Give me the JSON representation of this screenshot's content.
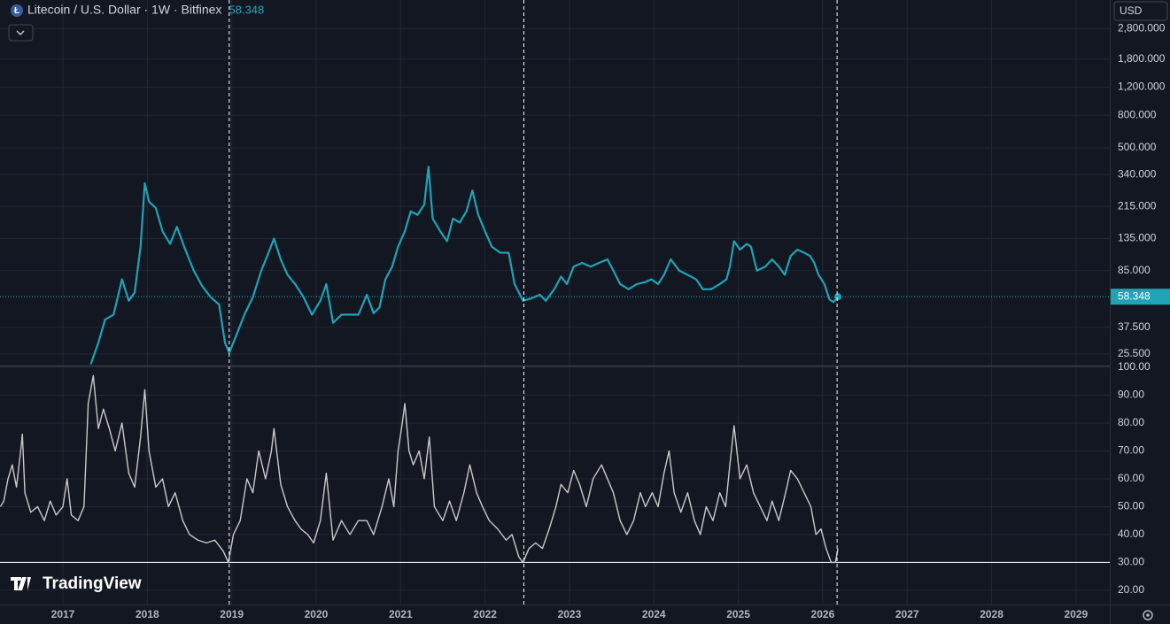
{
  "chart_data": {
    "type": "line",
    "title": "Litecoin / U.S. Dollar · 1W · Bitfinex",
    "last_price": 58.348,
    "currency": "USD",
    "watermark": "TradingView",
    "grid": true,
    "xlim": [
      2016.255,
      2029.4
    ],
    "xticks": [
      2017,
      2018,
      2019,
      2020,
      2021,
      2022,
      2023,
      2024,
      2025,
      2026,
      2027,
      2028,
      2029
    ],
    "markers": [
      2018.97,
      2022.46,
      2026.17
    ],
    "panes": [
      {
        "log": true,
        "ylim": [
          21.6,
          4220
        ],
        "yticks": [
          {
            "value": 25.5,
            "label": "25.500"
          },
          {
            "value": 37.5,
            "label": "37.500"
          },
          {
            "value": 85,
            "label": "85.000"
          },
          {
            "value": 135,
            "label": "135.000"
          },
          {
            "value": 215,
            "label": "215.000"
          },
          {
            "value": 340,
            "label": "340.000"
          },
          {
            "value": 500,
            "label": "500.000"
          },
          {
            "value": 800,
            "label": "800.000"
          },
          {
            "value": 1200,
            "label": "1,200.000"
          },
          {
            "value": 1800,
            "label": "1,800.000"
          },
          {
            "value": 2800,
            "label": "2,800.000"
          }
        ],
        "series": [
          {
            "color": "#1fa3b5",
            "x": [
              2017.33,
              2017.42,
              2017.5,
              2017.6,
              2017.7,
              2017.78,
              2017.85,
              2017.92,
              2017.97,
              2018.02,
              2018.1,
              2018.18,
              2018.27,
              2018.35,
              2018.45,
              2018.55,
              2018.65,
              2018.75,
              2018.85,
              2018.92,
              2018.97,
              2019.05,
              2019.15,
              2019.25,
              2019.35,
              2019.45,
              2019.5,
              2019.58,
              2019.66,
              2019.75,
              2019.85,
              2019.95,
              2020.05,
              2020.12,
              2020.2,
              2020.3,
              2020.4,
              2020.5,
              2020.6,
              2020.68,
              2020.75,
              2020.82,
              2020.9,
              2020.97,
              2021.05,
              2021.12,
              2021.2,
              2021.28,
              2021.33,
              2021.38,
              2021.47,
              2021.55,
              2021.62,
              2021.7,
              2021.78,
              2021.85,
              2021.92,
              2022.0,
              2022.08,
              2022.18,
              2022.28,
              2022.35,
              2022.45,
              2022.55,
              2022.65,
              2022.72,
              2022.82,
              2022.9,
              2022.97,
              2023.05,
              2023.15,
              2023.25,
              2023.35,
              2023.45,
              2023.52,
              2023.6,
              2023.7,
              2023.8,
              2023.9,
              2023.97,
              2024.05,
              2024.12,
              2024.2,
              2024.3,
              2024.4,
              2024.5,
              2024.58,
              2024.68,
              2024.78,
              2024.86,
              2024.9,
              2024.95,
              2025.02,
              2025.1,
              2025.15,
              2025.22,
              2025.32,
              2025.4,
              2025.48,
              2025.55,
              2025.62,
              2025.7,
              2025.78,
              2025.85,
              2025.9,
              2025.95,
              2026.02,
              2026.08,
              2026.13,
              2026.18
            ],
            "values": [
              22,
              30,
              42,
              45,
              75,
              55,
              62,
              120,
              300,
              230,
              210,
              150,
              125,
              160,
              115,
              85,
              68,
              58,
              52,
              30,
              26,
              33,
              45,
              58,
              85,
              115,
              135,
              100,
              80,
              70,
              58,
              45,
              55,
              70,
              40,
              45,
              45,
              45,
              60,
              46,
              50,
              75,
              90,
              120,
              150,
              200,
              190,
              220,
              380,
              180,
              150,
              130,
              180,
              170,
              200,
              270,
              190,
              150,
              120,
              110,
              110,
              70,
              55,
              57,
              60,
              55,
              65,
              78,
              70,
              90,
              95,
              90,
              95,
              100,
              85,
              70,
              65,
              70,
              72,
              75,
              70,
              80,
              100,
              85,
              80,
              75,
              65,
              65,
              70,
              75,
              90,
              130,
              115,
              125,
              120,
              85,
              90,
              100,
              90,
              80,
              105,
              115,
              110,
              105,
              95,
              80,
              70,
              56,
              54,
              58.348
            ]
          }
        ]
      },
      {
        "log": false,
        "ylim": [
          14.9,
          100.3
        ],
        "hline": 30,
        "yticks": [
          {
            "value": 20,
            "label": "20.00"
          },
          {
            "value": 30,
            "label": "30.00"
          },
          {
            "value": 40,
            "label": "40.00"
          },
          {
            "value": 50,
            "label": "50.00"
          },
          {
            "value": 60,
            "label": "60.00"
          },
          {
            "value": 70,
            "label": "70.00"
          },
          {
            "value": 80,
            "label": "80.00"
          },
          {
            "value": 90,
            "label": "90.00"
          },
          {
            "value": 100,
            "label": "100.00"
          }
        ],
        "series": [
          {
            "color": "#c9c9c9",
            "x": [
              2016.26,
              2016.3,
              2016.35,
              2016.4,
              2016.45,
              2016.5,
              2016.52,
              2016.55,
              2016.62,
              2016.7,
              2016.78,
              2016.85,
              2016.92,
              2017.0,
              2017.05,
              2017.1,
              2017.18,
              2017.25,
              2017.3,
              2017.36,
              2017.42,
              2017.48,
              2017.55,
              2017.62,
              2017.7,
              2017.78,
              2017.85,
              2017.92,
              2017.97,
              2018.02,
              2018.1,
              2018.18,
              2018.25,
              2018.33,
              2018.42,
              2018.5,
              2018.6,
              2018.7,
              2018.8,
              2018.9,
              2018.96,
              2019.02,
              2019.1,
              2019.18,
              2019.25,
              2019.32,
              2019.4,
              2019.47,
              2019.5,
              2019.58,
              2019.66,
              2019.75,
              2019.82,
              2019.9,
              2019.97,
              2020.05,
              2020.12,
              2020.2,
              2020.3,
              2020.4,
              2020.5,
              2020.6,
              2020.68,
              2020.78,
              2020.86,
              2020.92,
              2020.97,
              2021.02,
              2021.05,
              2021.1,
              2021.15,
              2021.22,
              2021.28,
              2021.34,
              2021.4,
              2021.5,
              2021.58,
              2021.66,
              2021.75,
              2021.82,
              2021.9,
              2021.97,
              2022.05,
              2022.15,
              2022.25,
              2022.32,
              2022.4,
              2022.45,
              2022.52,
              2022.6,
              2022.68,
              2022.76,
              2022.84,
              2022.9,
              2022.98,
              2023.05,
              2023.12,
              2023.2,
              2023.28,
              2023.38,
              2023.45,
              2023.52,
              2023.6,
              2023.68,
              2023.76,
              2023.84,
              2023.9,
              2023.98,
              2024.05,
              2024.12,
              2024.18,
              2024.24,
              2024.32,
              2024.4,
              2024.48,
              2024.55,
              2024.62,
              2024.7,
              2024.78,
              2024.85,
              2024.9,
              2024.95,
              2025.02,
              2025.1,
              2025.18,
              2025.26,
              2025.34,
              2025.4,
              2025.48,
              2025.56,
              2025.62,
              2025.7,
              2025.78,
              2025.86,
              2025.92,
              2025.98,
              2026.04,
              2026.1,
              2026.15,
              2026.18
            ],
            "values": [
              50,
              52,
              60,
              65,
              57,
              70,
              76,
              55,
              48,
              50,
              45,
              52,
              47,
              50,
              60,
              47,
              45,
              50,
              87,
              97,
              78,
              85,
              78,
              70,
              80,
              62,
              57,
              75,
              92,
              70,
              57,
              60,
              50,
              55,
              45,
              40,
              38,
              37,
              38,
              34,
              30,
              40,
              45,
              60,
              55,
              70,
              60,
              70,
              78,
              58,
              50,
              45,
              42,
              40,
              37,
              45,
              62,
              38,
              45,
              40,
              45,
              45,
              40,
              50,
              60,
              50,
              70,
              80,
              87,
              70,
              65,
              70,
              60,
              75,
              50,
              45,
              52,
              45,
              55,
              65,
              55,
              50,
              45,
              42,
              38,
              40,
              32,
              30,
              35,
              37,
              35,
              42,
              50,
              58,
              55,
              63,
              58,
              50,
              60,
              65,
              60,
              55,
              45,
              40,
              45,
              55,
              50,
              55,
              50,
              62,
              70,
              55,
              48,
              55,
              45,
              40,
              50,
              45,
              55,
              50,
              65,
              79,
              60,
              65,
              55,
              50,
              45,
              52,
              45,
              55,
              63,
              60,
              55,
              50,
              40,
              42,
              35,
              30,
              30,
              35
            ]
          }
        ]
      }
    ]
  }
}
